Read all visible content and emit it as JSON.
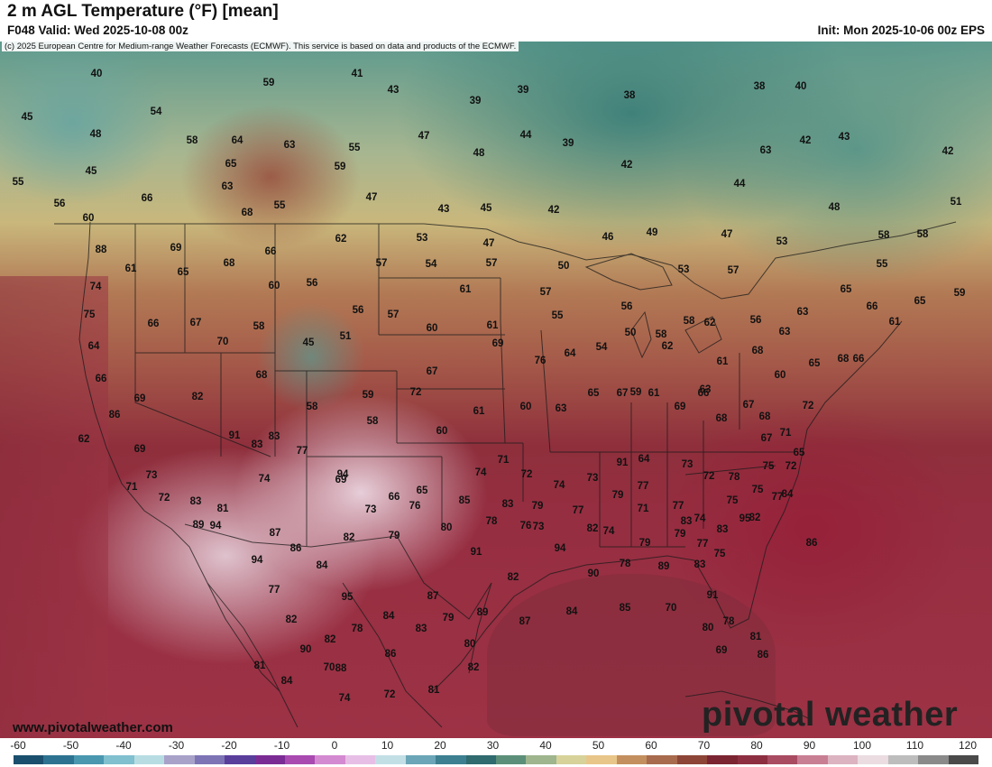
{
  "header": {
    "title": "2 m AGL Temperature (°F) [mean]",
    "valid": "F048 Valid: Wed 2025-10-08 00z",
    "init": "Init: Mon 2025-10-06 00z EPS"
  },
  "map": {
    "copyright": "(c) 2025 European Centre for Medium-range Weather Forecasts (ECMWF). This service is based on data and products of the ECMWF.",
    "website": "www.pivotalweather.com",
    "brand": "pivotal weather",
    "values": [
      "40",
      "41",
      "59",
      "43",
      "39",
      "39",
      "38",
      "38",
      "40",
      "45",
      "54",
      "48",
      "58",
      "64",
      "63",
      "55",
      "47",
      "44",
      "39",
      "42",
      "42",
      "43",
      "42",
      "45",
      "65",
      "59",
      "48",
      "55",
      "63",
      "63",
      "66",
      "68",
      "55",
      "47",
      "43",
      "45",
      "42",
      "44",
      "51",
      "48",
      "56",
      "60",
      "46",
      "49",
      "47",
      "53",
      "58",
      "58",
      "88",
      "69",
      "66",
      "62",
      "53",
      "47",
      "50",
      "55",
      "65",
      "61",
      "65",
      "74",
      "68",
      "60",
      "56",
      "61",
      "57",
      "54",
      "57",
      "53",
      "57",
      "63",
      "66",
      "65",
      "59",
      "75",
      "66",
      "67",
      "58",
      "45",
      "51",
      "56",
      "57",
      "60",
      "61",
      "55",
      "57",
      "56",
      "58",
      "50",
      "56",
      "61",
      "58",
      "62",
      "63",
      "64",
      "68",
      "70",
      "69",
      "67",
      "76",
      "64",
      "54",
      "62",
      "61",
      "60",
      "59",
      "61",
      "63",
      "65",
      "68",
      "66",
      "66",
      "69",
      "82",
      "68",
      "58",
      "59",
      "72",
      "58",
      "60",
      "61",
      "60",
      "63",
      "65",
      "67",
      "69",
      "66",
      "68",
      "67",
      "68",
      "67",
      "71",
      "72",
      "86",
      "62",
      "69",
      "73",
      "71",
      "72",
      "83",
      "91",
      "83",
      "83",
      "77",
      "69",
      "73",
      "76",
      "74",
      "71",
      "72",
      "74",
      "73",
      "91",
      "64",
      "73",
      "72",
      "78",
      "75",
      "75",
      "72",
      "65",
      "89",
      "74",
      "94",
      "66",
      "65",
      "81",
      "79",
      "77",
      "77",
      "74",
      "75",
      "95",
      "77",
      "84",
      "85",
      "83",
      "79",
      "77",
      "74",
      "71",
      "94",
      "87",
      "94",
      "86",
      "84",
      "82",
      "79",
      "80",
      "78",
      "73",
      "94",
      "82",
      "79",
      "83",
      "83",
      "82",
      "86",
      "75",
      "77",
      "79",
      "77",
      "95",
      "84",
      "87",
      "91",
      "82",
      "76",
      "90",
      "78",
      "89",
      "91",
      "83",
      "82",
      "82",
      "78",
      "79",
      "89",
      "87",
      "84",
      "85",
      "70",
      "80",
      "78",
      "90",
      "88",
      "86",
      "83",
      "80",
      "86",
      "81",
      "81",
      "84",
      "70",
      "74",
      "72",
      "81",
      "82",
      "69"
    ]
  },
  "colorbar": {
    "ticks": [
      "-60",
      "-50",
      "-40",
      "-30",
      "-20",
      "-10",
      "0",
      "10",
      "20",
      "30",
      "40",
      "50",
      "60",
      "70",
      "80",
      "90",
      "100",
      "110",
      "120"
    ],
    "colors": [
      "#1b4f6e",
      "#2d7391",
      "#4a97b0",
      "#80c0cf",
      "#b7dde3",
      "#a8a2c9",
      "#7d74b6",
      "#5a3e9c",
      "#7b2c94",
      "#a94ab0",
      "#d48ad0",
      "#e7bfe6",
      "#c3dfe6",
      "#6aa6b7",
      "#3d8091",
      "#2f6b6f",
      "#5c8f79",
      "#9fb58e",
      "#d6d29a",
      "#e8c689",
      "#c48f5f",
      "#a86b4e",
      "#8d4537",
      "#7b2532",
      "#8e2f41",
      "#a94c62",
      "#c87f93",
      "#dcb3c0",
      "#eadce1",
      "#bdbdbd",
      "#8a8a8a",
      "#4a4a4a"
    ]
  }
}
